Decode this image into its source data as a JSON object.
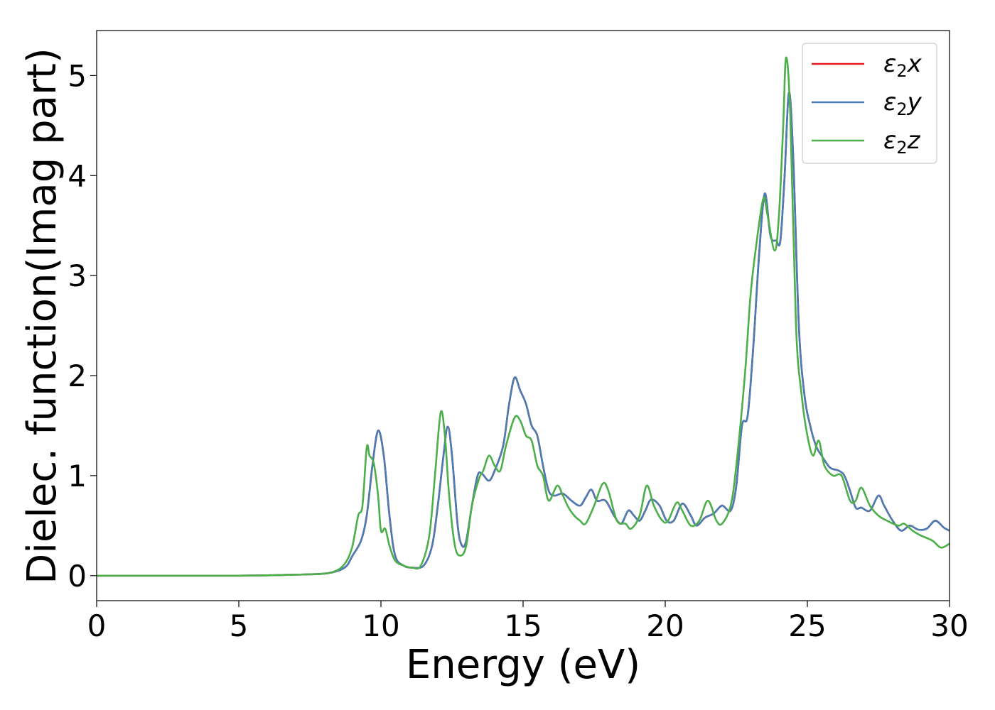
{
  "chart_data": {
    "type": "line",
    "title": "",
    "xlabel": "Energy (eV)",
    "ylabel": "Dielec. function(Imag part)",
    "xlim": [
      0,
      30
    ],
    "ylim": [
      -0.25,
      5.45
    ],
    "xticks": [
      0,
      5,
      10,
      15,
      20,
      25,
      30
    ],
    "yticks": [
      0,
      1,
      2,
      3,
      4,
      5
    ],
    "grid": false,
    "legend_position": "top-right",
    "series": [
      {
        "name": "ε₂x",
        "legend_main": "ε",
        "legend_sub": "2",
        "legend_axis": "x",
        "color": "#e41a1c",
        "points": [
          [
            0,
            0
          ],
          [
            5,
            0
          ],
          [
            7,
            0.01
          ],
          [
            8,
            0.02
          ],
          [
            8.5,
            0.05
          ],
          [
            8.8,
            0.1
          ],
          [
            9.0,
            0.2
          ],
          [
            9.3,
            0.35
          ],
          [
            9.5,
            0.6
          ],
          [
            9.7,
            1.1
          ],
          [
            9.9,
            1.45
          ],
          [
            10.1,
            1.2
          ],
          [
            10.3,
            0.6
          ],
          [
            10.5,
            0.2
          ],
          [
            10.8,
            0.1
          ],
          [
            11.1,
            0.08
          ],
          [
            11.5,
            0.1
          ],
          [
            11.8,
            0.3
          ],
          [
            12.0,
            0.7
          ],
          [
            12.2,
            1.2
          ],
          [
            12.35,
            1.49
          ],
          [
            12.5,
            1.2
          ],
          [
            12.7,
            0.5
          ],
          [
            12.85,
            0.3
          ],
          [
            13.0,
            0.35
          ],
          [
            13.2,
            0.7
          ],
          [
            13.4,
            1.0
          ],
          [
            13.55,
            1.02
          ],
          [
            13.8,
            0.95
          ],
          [
            14.0,
            1.05
          ],
          [
            14.3,
            1.3
          ],
          [
            14.5,
            1.7
          ],
          [
            14.7,
            1.98
          ],
          [
            14.9,
            1.85
          ],
          [
            15.1,
            1.72
          ],
          [
            15.3,
            1.5
          ],
          [
            15.5,
            1.4
          ],
          [
            15.7,
            1.1
          ],
          [
            15.9,
            0.85
          ],
          [
            16.1,
            0.8
          ],
          [
            16.4,
            0.82
          ],
          [
            16.7,
            0.75
          ],
          [
            17.0,
            0.7
          ],
          [
            17.2,
            0.78
          ],
          [
            17.4,
            0.86
          ],
          [
            17.6,
            0.75
          ],
          [
            17.9,
            0.75
          ],
          [
            18.2,
            0.6
          ],
          [
            18.45,
            0.52
          ],
          [
            18.7,
            0.65
          ],
          [
            18.9,
            0.6
          ],
          [
            19.1,
            0.55
          ],
          [
            19.3,
            0.65
          ],
          [
            19.5,
            0.76
          ],
          [
            19.8,
            0.7
          ],
          [
            20.05,
            0.55
          ],
          [
            20.3,
            0.55
          ],
          [
            20.6,
            0.72
          ],
          [
            20.9,
            0.6
          ],
          [
            21.1,
            0.5
          ],
          [
            21.4,
            0.58
          ],
          [
            21.7,
            0.62
          ],
          [
            22.0,
            0.7
          ],
          [
            22.3,
            0.65
          ],
          [
            22.5,
            0.9
          ],
          [
            22.7,
            1.5
          ],
          [
            22.9,
            1.6
          ],
          [
            23.1,
            2.3
          ],
          [
            23.3,
            3.2
          ],
          [
            23.5,
            3.82
          ],
          [
            23.7,
            3.4
          ],
          [
            23.9,
            3.35
          ],
          [
            24.05,
            3.35
          ],
          [
            24.2,
            4.0
          ],
          [
            24.35,
            4.83
          ],
          [
            24.5,
            4.2
          ],
          [
            24.7,
            2.5
          ],
          [
            24.9,
            1.8
          ],
          [
            25.1,
            1.5
          ],
          [
            25.3,
            1.3
          ],
          [
            25.5,
            1.2
          ],
          [
            25.8,
            1.08
          ],
          [
            26.1,
            1.05
          ],
          [
            26.3,
            1.0
          ],
          [
            26.5,
            0.85
          ],
          [
            26.7,
            0.68
          ],
          [
            26.9,
            0.68
          ],
          [
            27.2,
            0.65
          ],
          [
            27.5,
            0.8
          ],
          [
            27.7,
            0.7
          ],
          [
            28.0,
            0.55
          ],
          [
            28.3,
            0.45
          ],
          [
            28.6,
            0.5
          ],
          [
            28.9,
            0.46
          ],
          [
            29.2,
            0.47
          ],
          [
            29.5,
            0.55
          ],
          [
            29.8,
            0.48
          ],
          [
            30.0,
            0.45
          ]
        ]
      },
      {
        "name": "ε₂y",
        "legend_main": "ε",
        "legend_sub": "2",
        "legend_axis": "y",
        "color": "#4a7db4",
        "points": [
          [
            0,
            0
          ],
          [
            5,
            0
          ],
          [
            7,
            0.01
          ],
          [
            8,
            0.02
          ],
          [
            8.5,
            0.05
          ],
          [
            8.8,
            0.1
          ],
          [
            9.0,
            0.2
          ],
          [
            9.3,
            0.35
          ],
          [
            9.5,
            0.6
          ],
          [
            9.7,
            1.1
          ],
          [
            9.9,
            1.45
          ],
          [
            10.1,
            1.2
          ],
          [
            10.3,
            0.6
          ],
          [
            10.5,
            0.2
          ],
          [
            10.8,
            0.1
          ],
          [
            11.1,
            0.08
          ],
          [
            11.5,
            0.1
          ],
          [
            11.8,
            0.3
          ],
          [
            12.0,
            0.7
          ],
          [
            12.2,
            1.2
          ],
          [
            12.35,
            1.49
          ],
          [
            12.5,
            1.2
          ],
          [
            12.7,
            0.5
          ],
          [
            12.85,
            0.3
          ],
          [
            13.0,
            0.35
          ],
          [
            13.2,
            0.7
          ],
          [
            13.4,
            1.0
          ],
          [
            13.55,
            1.02
          ],
          [
            13.8,
            0.95
          ],
          [
            14.0,
            1.05
          ],
          [
            14.3,
            1.3
          ],
          [
            14.5,
            1.7
          ],
          [
            14.7,
            1.98
          ],
          [
            14.9,
            1.85
          ],
          [
            15.1,
            1.72
          ],
          [
            15.3,
            1.5
          ],
          [
            15.5,
            1.4
          ],
          [
            15.7,
            1.1
          ],
          [
            15.9,
            0.85
          ],
          [
            16.1,
            0.8
          ],
          [
            16.4,
            0.82
          ],
          [
            16.7,
            0.75
          ],
          [
            17.0,
            0.7
          ],
          [
            17.2,
            0.78
          ],
          [
            17.4,
            0.86
          ],
          [
            17.6,
            0.75
          ],
          [
            17.9,
            0.75
          ],
          [
            18.2,
            0.6
          ],
          [
            18.45,
            0.52
          ],
          [
            18.7,
            0.65
          ],
          [
            18.9,
            0.6
          ],
          [
            19.1,
            0.55
          ],
          [
            19.3,
            0.65
          ],
          [
            19.5,
            0.76
          ],
          [
            19.8,
            0.7
          ],
          [
            20.05,
            0.55
          ],
          [
            20.3,
            0.55
          ],
          [
            20.6,
            0.72
          ],
          [
            20.9,
            0.6
          ],
          [
            21.1,
            0.5
          ],
          [
            21.4,
            0.58
          ],
          [
            21.7,
            0.62
          ],
          [
            22.0,
            0.7
          ],
          [
            22.3,
            0.65
          ],
          [
            22.5,
            0.9
          ],
          [
            22.7,
            1.5
          ],
          [
            22.9,
            1.6
          ],
          [
            23.1,
            2.3
          ],
          [
            23.3,
            3.2
          ],
          [
            23.5,
            3.82
          ],
          [
            23.7,
            3.4
          ],
          [
            23.9,
            3.35
          ],
          [
            24.05,
            3.35
          ],
          [
            24.2,
            4.0
          ],
          [
            24.35,
            4.83
          ],
          [
            24.5,
            4.2
          ],
          [
            24.7,
            2.5
          ],
          [
            24.9,
            1.8
          ],
          [
            25.1,
            1.5
          ],
          [
            25.3,
            1.3
          ],
          [
            25.5,
            1.2
          ],
          [
            25.8,
            1.08
          ],
          [
            26.1,
            1.05
          ],
          [
            26.3,
            1.0
          ],
          [
            26.5,
            0.85
          ],
          [
            26.7,
            0.68
          ],
          [
            26.9,
            0.68
          ],
          [
            27.2,
            0.65
          ],
          [
            27.5,
            0.8
          ],
          [
            27.7,
            0.7
          ],
          [
            28.0,
            0.55
          ],
          [
            28.3,
            0.45
          ],
          [
            28.6,
            0.5
          ],
          [
            28.9,
            0.46
          ],
          [
            29.2,
            0.47
          ],
          [
            29.5,
            0.55
          ],
          [
            29.8,
            0.48
          ],
          [
            30.0,
            0.45
          ]
        ]
      },
      {
        "name": "ε₂z",
        "legend_main": "ε",
        "legend_sub": "2",
        "legend_axis": "z",
        "color": "#4daf4a",
        "points": [
          [
            0,
            0
          ],
          [
            5,
            0
          ],
          [
            7,
            0.01
          ],
          [
            8,
            0.02
          ],
          [
            8.5,
            0.06
          ],
          [
            8.8,
            0.15
          ],
          [
            9.0,
            0.3
          ],
          [
            9.2,
            0.6
          ],
          [
            9.35,
            0.7
          ],
          [
            9.5,
            1.28
          ],
          [
            9.6,
            1.2
          ],
          [
            9.75,
            1.12
          ],
          [
            9.9,
            0.8
          ],
          [
            10.0,
            0.45
          ],
          [
            10.15,
            0.47
          ],
          [
            10.3,
            0.3
          ],
          [
            10.5,
            0.15
          ],
          [
            10.8,
            0.1
          ],
          [
            11.1,
            0.08
          ],
          [
            11.4,
            0.1
          ],
          [
            11.7,
            0.4
          ],
          [
            11.9,
            1.0
          ],
          [
            12.1,
            1.63
          ],
          [
            12.25,
            1.4
          ],
          [
            12.4,
            0.8
          ],
          [
            12.6,
            0.3
          ],
          [
            12.8,
            0.2
          ],
          [
            13.0,
            0.3
          ],
          [
            13.2,
            0.7
          ],
          [
            13.45,
            0.97
          ],
          [
            13.6,
            1.05
          ],
          [
            13.8,
            1.2
          ],
          [
            14.0,
            1.1
          ],
          [
            14.2,
            1.05
          ],
          [
            14.4,
            1.3
          ],
          [
            14.7,
            1.58
          ],
          [
            14.9,
            1.55
          ],
          [
            15.1,
            1.4
          ],
          [
            15.3,
            1.35
          ],
          [
            15.5,
            1.1
          ],
          [
            15.7,
            1.0
          ],
          [
            15.9,
            0.75
          ],
          [
            16.2,
            0.9
          ],
          [
            16.4,
            0.8
          ],
          [
            16.6,
            0.68
          ],
          [
            16.8,
            0.6
          ],
          [
            17.0,
            0.55
          ],
          [
            17.2,
            0.52
          ],
          [
            17.5,
            0.7
          ],
          [
            17.8,
            0.92
          ],
          [
            18.0,
            0.85
          ],
          [
            18.3,
            0.55
          ],
          [
            18.6,
            0.52
          ],
          [
            18.8,
            0.47
          ],
          [
            19.1,
            0.6
          ],
          [
            19.35,
            0.9
          ],
          [
            19.6,
            0.7
          ],
          [
            19.9,
            0.55
          ],
          [
            20.1,
            0.55
          ],
          [
            20.4,
            0.73
          ],
          [
            20.6,
            0.65
          ],
          [
            20.9,
            0.5
          ],
          [
            21.2,
            0.55
          ],
          [
            21.5,
            0.75
          ],
          [
            21.8,
            0.55
          ],
          [
            22.0,
            0.52
          ],
          [
            22.3,
            0.7
          ],
          [
            22.5,
            1.1
          ],
          [
            22.8,
            2.0
          ],
          [
            23.0,
            2.8
          ],
          [
            23.2,
            3.3
          ],
          [
            23.45,
            3.77
          ],
          [
            23.6,
            3.6
          ],
          [
            23.85,
            3.25
          ],
          [
            24.0,
            3.6
          ],
          [
            24.15,
            4.5
          ],
          [
            24.25,
            5.18
          ],
          [
            24.4,
            4.6
          ],
          [
            24.6,
            2.5
          ],
          [
            24.8,
            1.8
          ],
          [
            25.0,
            1.4
          ],
          [
            25.2,
            1.2
          ],
          [
            25.4,
            1.35
          ],
          [
            25.6,
            1.1
          ],
          [
            25.9,
            1.0
          ],
          [
            26.2,
            1.0
          ],
          [
            26.5,
            0.75
          ],
          [
            26.7,
            0.75
          ],
          [
            26.9,
            0.88
          ],
          [
            27.2,
            0.7
          ],
          [
            27.5,
            0.6
          ],
          [
            27.8,
            0.55
          ],
          [
            28.2,
            0.5
          ],
          [
            28.4,
            0.52
          ],
          [
            28.7,
            0.45
          ],
          [
            29.0,
            0.4
          ],
          [
            29.4,
            0.35
          ],
          [
            29.7,
            0.28
          ],
          [
            30.0,
            0.32
          ]
        ]
      }
    ]
  }
}
